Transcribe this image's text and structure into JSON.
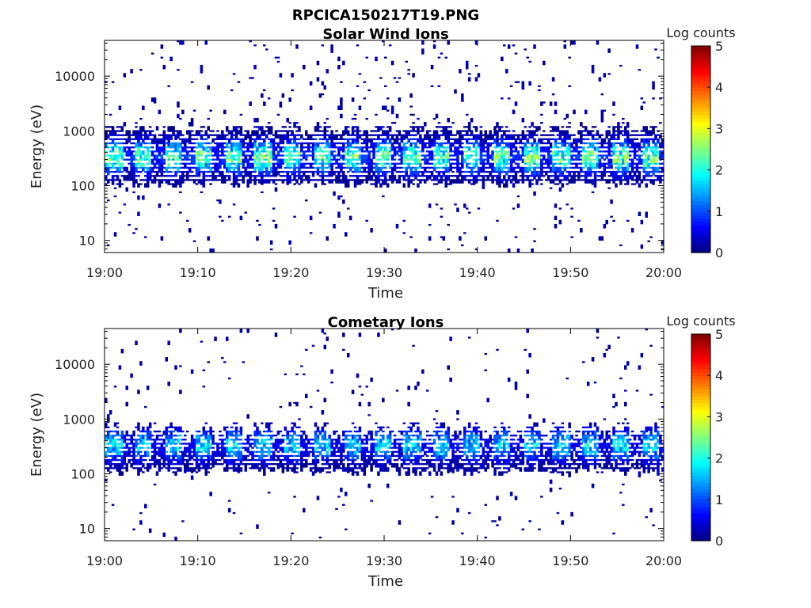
{
  "figure_title": "RPCICA150217T19.PNG",
  "chart_data": [
    {
      "type": "heatmap",
      "title": "Solar Wind Ions",
      "xlabel": "Time",
      "ylabel": "Energy (eV)",
      "x_range": [
        "19:00",
        "20:00"
      ],
      "x_ticks": [
        "19:00",
        "19:10",
        "19:20",
        "19:30",
        "19:40",
        "19:50",
        "20:00"
      ],
      "y_scale": "log",
      "y_range_eV": [
        6,
        45000
      ],
      "y_ticks": [
        "10",
        "100",
        "1000",
        "10000"
      ],
      "colorbar": {
        "label": "Log counts",
        "range": [
          0,
          5
        ],
        "ticks": [
          "0",
          "1",
          "2",
          "3",
          "4",
          "5"
        ],
        "colormap": "jet"
      },
      "description_of_content": "Main ion band between ~100 and ~1500 eV, peak intensity ~2-2.7 log counts around 200-500 eV, pulsing roughly every 3 minutes; sparse single counts from 6 eV to 40000 eV",
      "bands": [
        {
          "e_low": 100,
          "e_high": 1500,
          "peak_energy": 330,
          "peak_log_counts": 2.6,
          "period_min": 3.2
        }
      ]
    },
    {
      "type": "heatmap",
      "title": "Cometary Ions",
      "xlabel": "Time",
      "ylabel": "Energy (eV)",
      "x_range": [
        "19:00",
        "20:00"
      ],
      "x_ticks": [
        "19:00",
        "19:10",
        "19:20",
        "19:30",
        "19:40",
        "19:50",
        "20:00"
      ],
      "y_scale": "log",
      "y_range_eV": [
        6,
        45000
      ],
      "y_ticks": [
        "10",
        "100",
        "1000",
        "10000"
      ],
      "colorbar": {
        "label": "Log counts",
        "range": [
          0,
          5
        ],
        "ticks": [
          "0",
          "1",
          "2",
          "3",
          "4",
          "5"
        ],
        "colormap": "jet"
      },
      "description_of_content": "Main ion band between ~100 and ~700 eV, peak intensity ~1.8-2 log counts around 300-400 eV, with sparse counts up to ~7000 eV and isolated pixels at ~25000 eV near 19:40",
      "bands": [
        {
          "e_low": 100,
          "e_high": 700,
          "peak_energy": 330,
          "peak_log_counts": 1.9,
          "period_min": 3.2
        }
      ]
    }
  ]
}
